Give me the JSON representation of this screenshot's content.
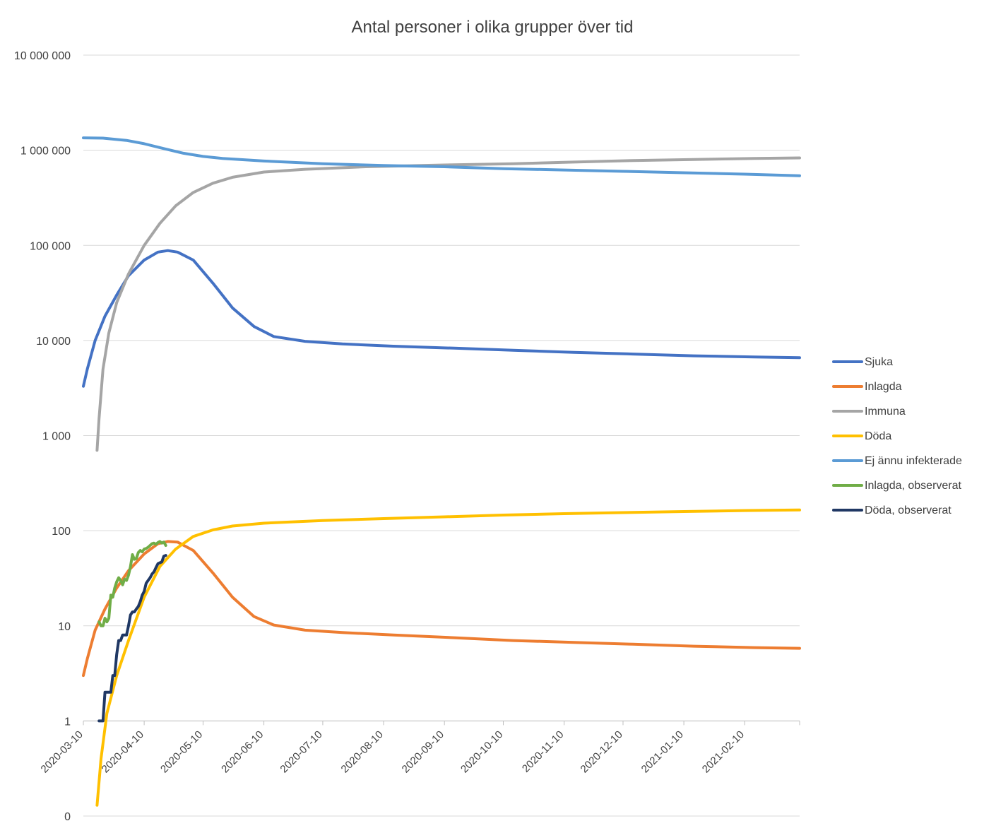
{
  "chart_data": {
    "type": "line",
    "title": "Antal personer i olika grupper över tid",
    "y_scale": "log",
    "ylim": [
      0.1,
      10000000
    ],
    "y_ticks": [
      {
        "value": 0.1,
        "label": "0"
      },
      {
        "value": 1,
        "label": "1"
      },
      {
        "value": 10,
        "label": "10"
      },
      {
        "value": 100,
        "label": "100"
      },
      {
        "value": 1000,
        "label": "1 000"
      },
      {
        "value": 10000,
        "label": "10 000"
      },
      {
        "value": 100000,
        "label": "100 000"
      },
      {
        "value": 1000000,
        "label": "1 000 000"
      },
      {
        "value": 10000000,
        "label": "10 000 000"
      }
    ],
    "xlim": [
      "2020-03-10",
      "2021-03-10"
    ],
    "x_ticks": [
      "2020-03-10",
      "2020-04-10",
      "2020-05-10",
      "2020-06-10",
      "2020-07-10",
      "2020-08-10",
      "2020-09-10",
      "2020-10-10",
      "2020-11-10",
      "2020-12-10",
      "2021-01-10",
      "2021-02-10"
    ],
    "grid": true,
    "legend_position": "right",
    "series": [
      {
        "name": "Sjuka",
        "color": "#4472C4",
        "points": [
          [
            "2020-03-10",
            3300
          ],
          [
            "2020-03-12",
            5000
          ],
          [
            "2020-03-16",
            10000
          ],
          [
            "2020-03-21",
            18000
          ],
          [
            "2020-03-27",
            30000
          ],
          [
            "2020-04-02",
            48000
          ],
          [
            "2020-04-10",
            70000
          ],
          [
            "2020-04-17",
            85000
          ],
          [
            "2020-04-22",
            88000
          ],
          [
            "2020-04-27",
            85000
          ],
          [
            "2020-05-05",
            70000
          ],
          [
            "2020-05-15",
            40000
          ],
          [
            "2020-05-25",
            22000
          ],
          [
            "2020-06-05",
            14000
          ],
          [
            "2020-06-15",
            11000
          ],
          [
            "2020-07-01",
            9800
          ],
          [
            "2020-07-20",
            9200
          ],
          [
            "2020-08-15",
            8700
          ],
          [
            "2020-09-15",
            8300
          ],
          [
            "2020-10-15",
            7900
          ],
          [
            "2020-11-15",
            7500
          ],
          [
            "2020-12-15",
            7200
          ],
          [
            "2021-01-15",
            6900
          ],
          [
            "2021-02-15",
            6700
          ],
          [
            "2021-03-10",
            6600
          ]
        ]
      },
      {
        "name": "Inlagda",
        "color": "#ED7D31",
        "points": [
          [
            "2020-03-10",
            3
          ],
          [
            "2020-03-12",
            4.5
          ],
          [
            "2020-03-16",
            9
          ],
          [
            "2020-03-21",
            15
          ],
          [
            "2020-03-27",
            25
          ],
          [
            "2020-04-02",
            38
          ],
          [
            "2020-04-10",
            57
          ],
          [
            "2020-04-17",
            73
          ],
          [
            "2020-04-22",
            77
          ],
          [
            "2020-04-27",
            76
          ],
          [
            "2020-05-05",
            62
          ],
          [
            "2020-05-15",
            36
          ],
          [
            "2020-05-25",
            20
          ],
          [
            "2020-06-05",
            12.5
          ],
          [
            "2020-06-15",
            10.2
          ],
          [
            "2020-07-01",
            9
          ],
          [
            "2020-07-20",
            8.5
          ],
          [
            "2020-08-15",
            8
          ],
          [
            "2020-09-15",
            7.5
          ],
          [
            "2020-10-15",
            7
          ],
          [
            "2020-11-15",
            6.7
          ],
          [
            "2020-12-15",
            6.4
          ],
          [
            "2021-01-15",
            6.1
          ],
          [
            "2021-02-15",
            5.9
          ],
          [
            "2021-03-10",
            5.8
          ]
        ]
      },
      {
        "name": "Immuna",
        "color": "#A5A5A5",
        "points": [
          [
            "2020-03-17",
            700
          ],
          [
            "2020-03-18",
            1500
          ],
          [
            "2020-03-20",
            5000
          ],
          [
            "2020-03-23",
            12000
          ],
          [
            "2020-03-27",
            25000
          ],
          [
            "2020-04-02",
            50000
          ],
          [
            "2020-04-10",
            100000
          ],
          [
            "2020-04-18",
            170000
          ],
          [
            "2020-04-26",
            260000
          ],
          [
            "2020-05-05",
            360000
          ],
          [
            "2020-05-15",
            450000
          ],
          [
            "2020-05-25",
            520000
          ],
          [
            "2020-06-10",
            590000
          ],
          [
            "2020-07-01",
            630000
          ],
          [
            "2020-08-01",
            670000
          ],
          [
            "2020-09-10",
            700000
          ],
          [
            "2020-10-15",
            720000
          ],
          [
            "2020-11-15",
            750000
          ],
          [
            "2020-12-15",
            780000
          ],
          [
            "2021-01-15",
            800000
          ],
          [
            "2021-02-15",
            820000
          ],
          [
            "2021-03-10",
            830000
          ]
        ]
      },
      {
        "name": "Döda",
        "color": "#FFC000",
        "points": [
          [
            "2020-03-17",
            0.13
          ],
          [
            "2020-03-19",
            0.4
          ],
          [
            "2020-03-22",
            1.2
          ],
          [
            "2020-03-27",
            3
          ],
          [
            "2020-04-02",
            7
          ],
          [
            "2020-04-10",
            20
          ],
          [
            "2020-04-18",
            42
          ],
          [
            "2020-04-26",
            64
          ],
          [
            "2020-05-05",
            87
          ],
          [
            "2020-05-15",
            102
          ],
          [
            "2020-05-25",
            112
          ],
          [
            "2020-06-10",
            120
          ],
          [
            "2020-07-10",
            128
          ],
          [
            "2020-08-10",
            134
          ],
          [
            "2020-09-10",
            140
          ],
          [
            "2020-10-10",
            146
          ],
          [
            "2020-11-10",
            151
          ],
          [
            "2020-12-10",
            155
          ],
          [
            "2021-01-10",
            159
          ],
          [
            "2021-02-10",
            163
          ],
          [
            "2021-03-10",
            165
          ]
        ]
      },
      {
        "name": "Ej ännu infekterade",
        "color": "#5B9BD5",
        "points": [
          [
            "2020-03-10",
            1350000
          ],
          [
            "2020-03-20",
            1340000
          ],
          [
            "2020-04-01",
            1270000
          ],
          [
            "2020-04-10",
            1170000
          ],
          [
            "2020-04-20",
            1040000
          ],
          [
            "2020-04-30",
            930000
          ],
          [
            "2020-05-10",
            860000
          ],
          [
            "2020-05-20",
            820000
          ],
          [
            "2020-06-10",
            770000
          ],
          [
            "2020-07-10",
            720000
          ],
          [
            "2020-08-10",
            690000
          ],
          [
            "2020-09-10",
            670000
          ],
          [
            "2020-10-10",
            640000
          ],
          [
            "2020-11-10",
            620000
          ],
          [
            "2020-12-10",
            600000
          ],
          [
            "2021-01-10",
            580000
          ],
          [
            "2021-02-10",
            560000
          ],
          [
            "2021-03-10",
            540000
          ]
        ]
      },
      {
        "name": "Inlagda, observerat",
        "color": "#70AD47",
        "points": [
          [
            "2020-03-18",
            11
          ],
          [
            "2020-03-19",
            10
          ],
          [
            "2020-03-20",
            10
          ],
          [
            "2020-03-21",
            12
          ],
          [
            "2020-03-22",
            11
          ],
          [
            "2020-03-23",
            12
          ],
          [
            "2020-03-24",
            21
          ],
          [
            "2020-03-25",
            20
          ],
          [
            "2020-03-26",
            25
          ],
          [
            "2020-03-27",
            29
          ],
          [
            "2020-03-28",
            32
          ],
          [
            "2020-03-29",
            30
          ],
          [
            "2020-03-30",
            27
          ],
          [
            "2020-03-31",
            31
          ],
          [
            "2020-04-01",
            30
          ],
          [
            "2020-04-02",
            34
          ],
          [
            "2020-04-03",
            42
          ],
          [
            "2020-04-04",
            56
          ],
          [
            "2020-04-05",
            50
          ],
          [
            "2020-04-06",
            51
          ],
          [
            "2020-04-07",
            59
          ],
          [
            "2020-04-08",
            62
          ],
          [
            "2020-04-09",
            60
          ],
          [
            "2020-04-10",
            64
          ],
          [
            "2020-04-11",
            65
          ],
          [
            "2020-04-12",
            67
          ],
          [
            "2020-04-13",
            70
          ],
          [
            "2020-04-14",
            73
          ],
          [
            "2020-04-15",
            74
          ],
          [
            "2020-04-16",
            72
          ],
          [
            "2020-04-17",
            75
          ],
          [
            "2020-04-18",
            77
          ],
          [
            "2020-04-19",
            74
          ],
          [
            "2020-04-20",
            76
          ],
          [
            "2020-04-21",
            70
          ]
        ]
      },
      {
        "name": "Döda, observerat",
        "color": "#203864",
        "points": [
          [
            "2020-03-18",
            1
          ],
          [
            "2020-03-20",
            1
          ],
          [
            "2020-03-21",
            2
          ],
          [
            "2020-03-24",
            2
          ],
          [
            "2020-03-25",
            3
          ],
          [
            "2020-03-26",
            3
          ],
          [
            "2020-03-27",
            5
          ],
          [
            "2020-03-28",
            7
          ],
          [
            "2020-03-29",
            7
          ],
          [
            "2020-03-30",
            8
          ],
          [
            "2020-04-01",
            8
          ],
          [
            "2020-04-02",
            10
          ],
          [
            "2020-04-03",
            13
          ],
          [
            "2020-04-04",
            14
          ],
          [
            "2020-04-05",
            14
          ],
          [
            "2020-04-06",
            15
          ],
          [
            "2020-04-07",
            16
          ],
          [
            "2020-04-08",
            18
          ],
          [
            "2020-04-09",
            21
          ],
          [
            "2020-04-10",
            23
          ],
          [
            "2020-04-11",
            28
          ],
          [
            "2020-04-12",
            30
          ],
          [
            "2020-04-13",
            32
          ],
          [
            "2020-04-14",
            35
          ],
          [
            "2020-04-15",
            37
          ],
          [
            "2020-04-16",
            41
          ],
          [
            "2020-04-17",
            45
          ],
          [
            "2020-04-18",
            46
          ],
          [
            "2020-04-19",
            47
          ],
          [
            "2020-04-20",
            54
          ],
          [
            "2020-04-21",
            55
          ]
        ]
      }
    ]
  }
}
